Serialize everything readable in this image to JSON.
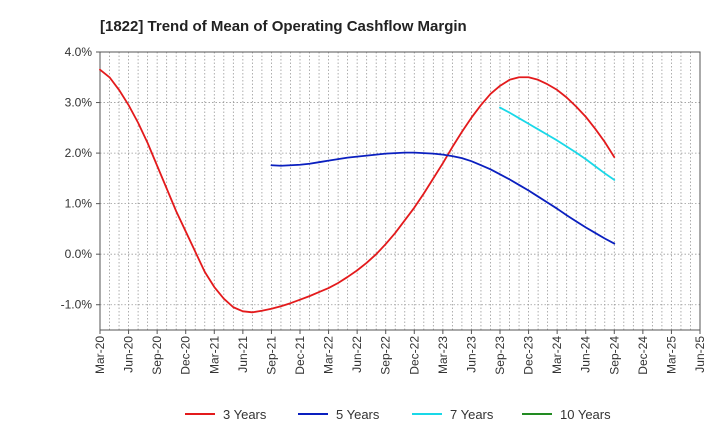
{
  "chart_data": {
    "type": "line",
    "title": "[1822]  Trend of Mean of Operating Cashflow Margin",
    "xlabel": "",
    "ylabel": "",
    "x_ticks": [
      "Mar-20",
      "Jun-20",
      "Sep-20",
      "Dec-20",
      "Mar-21",
      "Jun-21",
      "Sep-21",
      "Dec-21",
      "Mar-22",
      "Jun-22",
      "Sep-22",
      "Dec-22",
      "Mar-23",
      "Jun-23",
      "Sep-23",
      "Dec-23",
      "Mar-24",
      "Jun-24",
      "Sep-24",
      "Dec-24",
      "Mar-25",
      "Jun-25"
    ],
    "y_ticks": [
      "4.0%",
      "3.0%",
      "2.0%",
      "1.0%",
      "0.0%",
      "-1.0%"
    ],
    "y_tick_values": [
      4.0,
      3.0,
      2.0,
      1.0,
      0.0,
      -1.0
    ],
    "ylim": [
      -1.5,
      4.0
    ],
    "grid": true,
    "legend_position": "bottom",
    "series": [
      {
        "name": "3 Years",
        "color": "#e31a1c",
        "x": [
          "Mar-20",
          "Apr-20",
          "May-20",
          "Jun-20",
          "Jul-20",
          "Aug-20",
          "Sep-20",
          "Oct-20",
          "Nov-20",
          "Dec-20",
          "Jan-21",
          "Feb-21",
          "Mar-21",
          "Apr-21",
          "May-21",
          "Jun-21",
          "Jul-21",
          "Aug-21",
          "Sep-21",
          "Oct-21",
          "Nov-21",
          "Dec-21",
          "Jan-22",
          "Feb-22",
          "Mar-22",
          "Apr-22",
          "May-22",
          "Jun-22",
          "Jul-22",
          "Aug-22",
          "Sep-22",
          "Oct-22",
          "Nov-22",
          "Dec-22",
          "Jan-23",
          "Feb-23",
          "Mar-23",
          "Apr-23",
          "May-23",
          "Jun-23",
          "Jul-23",
          "Aug-23",
          "Sep-23",
          "Oct-23",
          "Nov-23",
          "Dec-23",
          "Jan-24",
          "Feb-24",
          "Mar-24",
          "Apr-24",
          "May-24",
          "Jun-24",
          "Jul-24",
          "Aug-24",
          "Sep-24"
        ],
        "values": [
          3.65,
          3.5,
          3.25,
          2.95,
          2.6,
          2.2,
          1.75,
          1.3,
          0.85,
          0.45,
          0.05,
          -0.35,
          -0.65,
          -0.88,
          -1.05,
          -1.13,
          -1.15,
          -1.12,
          -1.08,
          -1.03,
          -0.97,
          -0.9,
          -0.83,
          -0.75,
          -0.67,
          -0.57,
          -0.45,
          -0.32,
          -0.17,
          0.0,
          0.2,
          0.42,
          0.67,
          0.92,
          1.2,
          1.5,
          1.8,
          2.12,
          2.42,
          2.7,
          2.95,
          3.17,
          3.33,
          3.45,
          3.5,
          3.5,
          3.45,
          3.36,
          3.25,
          3.1,
          2.92,
          2.72,
          2.48,
          2.22,
          1.92
        ]
      },
      {
        "name": "5 Years",
        "color": "#0a1fbf",
        "x": [
          "Sep-21",
          "Oct-21",
          "Nov-21",
          "Dec-21",
          "Jan-22",
          "Feb-22",
          "Mar-22",
          "Apr-22",
          "May-22",
          "Jun-22",
          "Jul-22",
          "Aug-22",
          "Sep-22",
          "Oct-22",
          "Nov-22",
          "Dec-22",
          "Jan-23",
          "Feb-23",
          "Mar-23",
          "Apr-23",
          "May-23",
          "Jun-23",
          "Jul-23",
          "Aug-23",
          "Sep-23",
          "Oct-23",
          "Nov-23",
          "Dec-23",
          "Jan-24",
          "Feb-24",
          "Mar-24",
          "Apr-24",
          "May-24",
          "Jun-24",
          "Jul-24",
          "Aug-24",
          "Sep-24"
        ],
        "values": [
          1.76,
          1.75,
          1.76,
          1.77,
          1.79,
          1.82,
          1.85,
          1.88,
          1.91,
          1.93,
          1.95,
          1.97,
          1.99,
          2.0,
          2.01,
          2.01,
          2.0,
          1.99,
          1.97,
          1.94,
          1.9,
          1.84,
          1.76,
          1.68,
          1.58,
          1.48,
          1.37,
          1.26,
          1.14,
          1.02,
          0.9,
          0.77,
          0.65,
          0.53,
          0.42,
          0.31,
          0.21
        ]
      },
      {
        "name": "7 Years",
        "color": "#19d8e8",
        "x": [
          "Sep-23",
          "Oct-23",
          "Nov-23",
          "Dec-23",
          "Jan-24",
          "Feb-24",
          "Mar-24",
          "Apr-24",
          "May-24",
          "Jun-24",
          "Jul-24",
          "Aug-24",
          "Sep-24"
        ],
        "values": [
          2.9,
          2.8,
          2.69,
          2.58,
          2.47,
          2.36,
          2.25,
          2.13,
          2.01,
          1.88,
          1.74,
          1.6,
          1.47
        ]
      },
      {
        "name": "10 Years",
        "color": "#228b22",
        "x": [],
        "values": []
      }
    ]
  }
}
